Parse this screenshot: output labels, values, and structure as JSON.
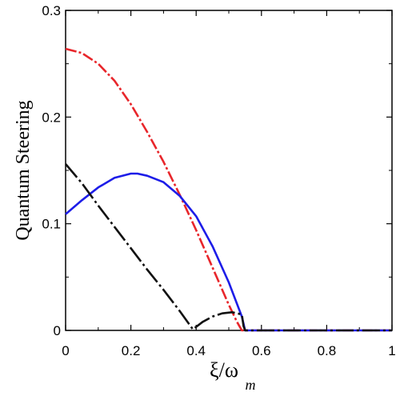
{
  "chart_data": {
    "type": "line",
    "title": "",
    "ylabel": "Quantum Steering",
    "xlabel": {
      "main": "ξ/ω",
      "sub": "m"
    },
    "xlim": [
      0,
      1
    ],
    "ylim": [
      0,
      0.3
    ],
    "xticks": [
      0,
      0.2,
      0.4,
      0.6,
      0.8,
      1
    ],
    "xtick_labels": [
      "0",
      "0.2",
      "0.4",
      "0.6",
      "0.8",
      "1"
    ],
    "yticks": [
      0,
      0.1,
      0.2,
      0.3
    ],
    "ytick_labels": [
      "0",
      "0.1",
      "0.2",
      "0.3"
    ],
    "grid": false,
    "series": [
      {
        "color": "#e8262b",
        "dash": "dashdot",
        "x": [
          0,
          0.05,
          0.1,
          0.15,
          0.2,
          0.25,
          0.3,
          0.35,
          0.4,
          0.45,
          0.5,
          0.525,
          0.54,
          0.55,
          0.6,
          0.7,
          0.8,
          0.9,
          1.0
        ],
        "y": [
          0.264,
          0.26,
          0.25,
          0.234,
          0.212,
          0.186,
          0.158,
          0.127,
          0.094,
          0.059,
          0.024,
          0.008,
          0.0,
          0.0,
          0.0,
          0.0,
          0.0,
          0.0,
          0.0
        ]
      },
      {
        "color": "#1d1de8",
        "dash": "solid",
        "x": [
          0,
          0.05,
          0.1,
          0.15,
          0.2,
          0.22,
          0.25,
          0.3,
          0.35,
          0.4,
          0.45,
          0.5,
          0.54,
          0.55,
          0.6,
          0.7,
          0.8,
          0.9,
          1.0
        ],
        "y": [
          0.109,
          0.122,
          0.134,
          0.143,
          0.147,
          0.147,
          0.145,
          0.139,
          0.126,
          0.107,
          0.079,
          0.045,
          0.013,
          0.0,
          0.0,
          0.0,
          0.0,
          0.0,
          0.0
        ]
      },
      {
        "color": "#111111",
        "dash": "longdashdot",
        "x": [
          0,
          0.05,
          0.1,
          0.15,
          0.2,
          0.25,
          0.3,
          0.35,
          0.39,
          0.42,
          0.45,
          0.48,
          0.51,
          0.54,
          0.545,
          0.55,
          0.6,
          0.7,
          0.8,
          0.9,
          1.0
        ],
        "y": [
          0.156,
          0.138,
          0.117,
          0.097,
          0.077,
          0.057,
          0.038,
          0.018,
          0.001,
          0.008,
          0.013,
          0.016,
          0.017,
          0.015,
          0.004,
          0.0,
          0.0,
          0.0,
          0.0,
          0.0,
          0.0
        ]
      }
    ]
  }
}
